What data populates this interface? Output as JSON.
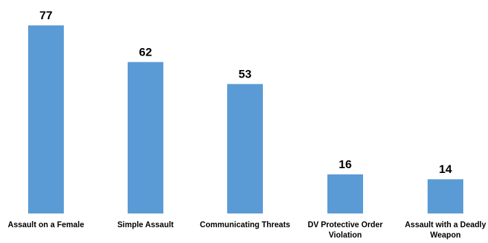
{
  "chart_data": {
    "type": "bar",
    "categories": [
      "Assault on a Female",
      "Simple Assault",
      "Communicating Threats",
      "DV Protective Order Violation",
      "Assault with a Deadly Weapon"
    ],
    "category_lines": [
      [
        "Assault on a Female"
      ],
      [
        "Simple Assault"
      ],
      [
        "Communicating Threats"
      ],
      [
        "DV Protective Order",
        "Violation"
      ],
      [
        "Assault with a Deadly",
        "Weapon"
      ]
    ],
    "values": [
      77,
      62,
      53,
      16,
      14
    ],
    "value_labels": [
      "77",
      "62",
      "53",
      "16",
      "14"
    ],
    "title": "",
    "xlabel": "",
    "ylabel": "",
    "ylim": [
      0,
      77
    ],
    "grid": false,
    "legend": "none",
    "bar_color": "#5b9bd5"
  }
}
